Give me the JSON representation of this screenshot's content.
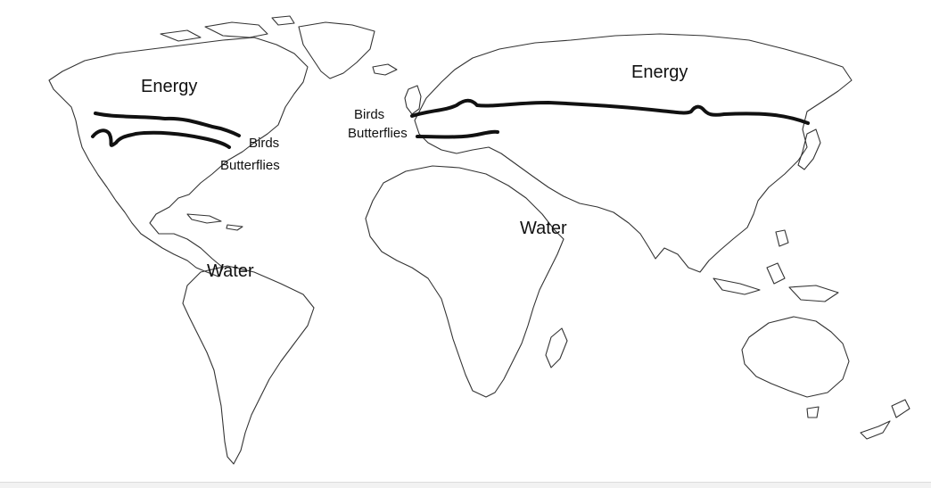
{
  "labels": {
    "na_energy": "Energy",
    "na_birds": "Birds",
    "na_butterflies": "Butterflies",
    "na_water": "Water",
    "eu_birds": "Birds",
    "eu_butterflies": "Butterflies",
    "eur_energy": "Energy",
    "af_water": "Water"
  },
  "colors": {
    "coastline": "#333333",
    "boundary_line": "#111111",
    "background": "#ffffff"
  }
}
